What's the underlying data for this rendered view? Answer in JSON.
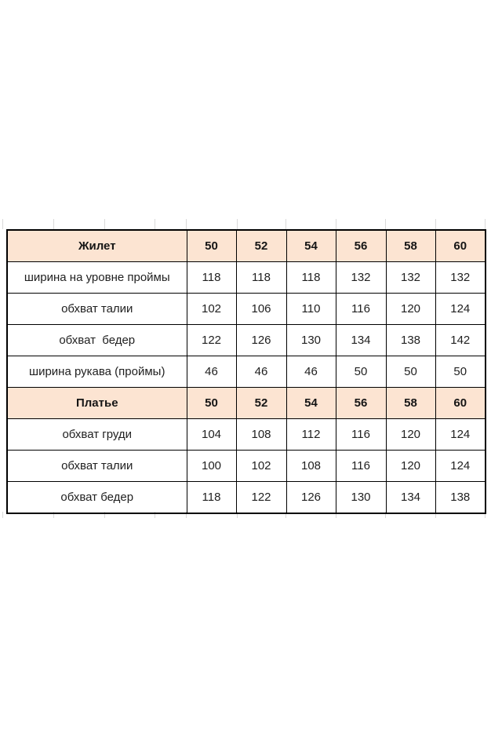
{
  "sheet": {
    "background_color": "#ffffff",
    "gridline_color": "#d9d9d9"
  },
  "size_table": {
    "header_fill_color": "#fce4d2",
    "border_color": "#000000",
    "text_color": "#1f1f1f",
    "sections": [
      {
        "header": {
          "label": "Жилет",
          "sizes": [
            "50",
            "52",
            "54",
            "56",
            "58",
            "60"
          ]
        },
        "rows": [
          {
            "label": "ширина на уровне проймы",
            "values": [
              "118",
              "118",
              "118",
              "132",
              "132",
              "132"
            ]
          },
          {
            "label": "обхват талии",
            "values": [
              "102",
              "106",
              "110",
              "116",
              "120",
              "124"
            ]
          },
          {
            "label": "обхват  бедер",
            "values": [
              "122",
              "126",
              "130",
              "134",
              "138",
              "142"
            ]
          },
          {
            "label": "ширина рукава (проймы)",
            "values": [
              "46",
              "46",
              "46",
              "50",
              "50",
              "50"
            ]
          }
        ]
      },
      {
        "header": {
          "label": "Платье",
          "sizes": [
            "50",
            "52",
            "54",
            "56",
            "58",
            "60"
          ]
        },
        "rows": [
          {
            "label": "обхват груди",
            "values": [
              "104",
              "108",
              "112",
              "116",
              "120",
              "124"
            ]
          },
          {
            "label": "обхват талии",
            "values": [
              "100",
              "102",
              "108",
              "116",
              "120",
              "124"
            ]
          },
          {
            "label": "обхват бедер",
            "values": [
              "118",
              "122",
              "126",
              "130",
              "134",
              "138"
            ]
          }
        ]
      }
    ]
  }
}
